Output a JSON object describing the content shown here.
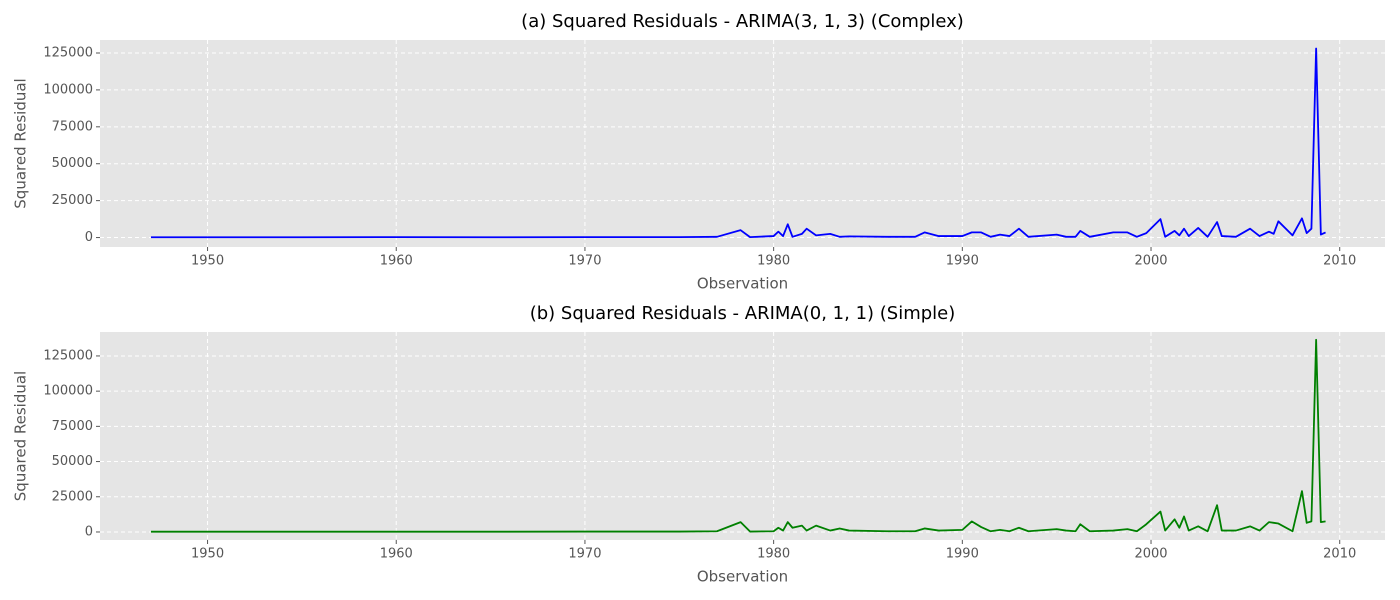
{
  "chart_data": [
    {
      "type": "line",
      "title": "(a) Squared Residuals - ARIMA(3, 1, 3) (Complex)",
      "xlabel": "Observation",
      "ylabel": "Squared Residual",
      "grid": true,
      "xlim": [
        1944.3,
        2012.4
      ],
      "ylim": [
        -6400,
        133800
      ],
      "xticks": [
        1950,
        1960,
        1970,
        1980,
        1990,
        2000,
        2010
      ],
      "yticks": [
        0,
        25000,
        50000,
        75000,
        100000,
        125000
      ],
      "x": [
        1947,
        1950,
        1955,
        1960,
        1965,
        1970,
        1975,
        1977,
        1978.25,
        1978.75,
        1980,
        1980.25,
        1980.5,
        1980.75,
        1981,
        1981.5,
        1981.75,
        1982.25,
        1983,
        1983.5,
        1984,
        1986,
        1987.5,
        1988,
        1988.75,
        1990,
        1990.5,
        1991,
        1991.5,
        1992,
        1992.5,
        1993,
        1993.5,
        1995,
        1995.5,
        1996,
        1996.25,
        1996.75,
        1998,
        1998.75,
        1999.25,
        1999.75,
        2000.5,
        2000.75,
        2001.25,
        2001.5,
        2001.75,
        2002,
        2002.5,
        2003,
        2003.5,
        2003.75,
        2004.5,
        2005.25,
        2005.75,
        2006.25,
        2006.5,
        2006.75,
        2007.5,
        2008,
        2008.25,
        2008.5,
        2008.75,
        2009,
        2009.25
      ],
      "series": [
        {
          "color": "#0000ff",
          "values": [
            200,
            200,
            200,
            300,
            200,
            300,
            300,
            500,
            5000,
            300,
            1000,
            4000,
            1000,
            9000,
            500,
            2500,
            6000,
            1500,
            2500,
            500,
            800,
            500,
            500,
            3500,
            1000,
            1000,
            3500,
            3500,
            500,
            2000,
            1000,
            6000,
            500,
            2000,
            500,
            500,
            4500,
            500,
            3500,
            3500,
            500,
            3000,
            12500,
            500,
            4500,
            1500,
            6000,
            1000,
            6500,
            500,
            10500,
            1000,
            500,
            6000,
            1000,
            4000,
            2500,
            11000,
            1500,
            13000,
            3000,
            6000,
            128000,
            2000,
            3500
          ]
        }
      ]
    },
    {
      "type": "line",
      "title": "(b) Squared Residuals - ARIMA(0, 1, 1) (Simple)",
      "xlabel": "Observation",
      "ylabel": "Squared Residual",
      "grid": true,
      "xlim": [
        1944.3,
        2012.4
      ],
      "ylim": [
        -5700,
        142000
      ],
      "xticks": [
        1950,
        1960,
        1970,
        1980,
        1990,
        2000,
        2010
      ],
      "yticks": [
        0,
        25000,
        50000,
        75000,
        100000,
        125000
      ],
      "x": [
        1947,
        1950,
        1955,
        1960,
        1965,
        1970,
        1975,
        1977,
        1978.25,
        1978.75,
        1980,
        1980.25,
        1980.5,
        1980.75,
        1981,
        1981.5,
        1981.75,
        1982.25,
        1983,
        1983.5,
        1984,
        1986,
        1987.5,
        1988,
        1988.75,
        1990,
        1990.5,
        1991,
        1991.5,
        1992,
        1992.5,
        1993,
        1993.5,
        1995,
        1995.5,
        1996,
        1996.25,
        1996.75,
        1998,
        1998.75,
        1999.25,
        1999.75,
        2000.5,
        2000.75,
        2001.25,
        2001.5,
        2001.75,
        2002,
        2002.5,
        2003,
        2003.5,
        2003.75,
        2004.5,
        2005.25,
        2005.75,
        2006.25,
        2006.5,
        2006.75,
        2007.5,
        2008,
        2008.25,
        2008.5,
        2008.75,
        2009,
        2009.25
      ],
      "series": [
        {
          "color": "#008000",
          "values": [
            200,
            200,
            200,
            200,
            200,
            300,
            300,
            500,
            7000,
            300,
            500,
            3000,
            1000,
            7000,
            3000,
            4500,
            1000,
            4500,
            1000,
            2500,
            1000,
            500,
            500,
            2500,
            1000,
            1500,
            7500,
            3500,
            500,
            1500,
            500,
            3000,
            500,
            2000,
            1000,
            500,
            5500,
            500,
            1000,
            2000,
            500,
            5500,
            14500,
            1000,
            9000,
            3000,
            11000,
            1000,
            4000,
            500,
            19000,
            1000,
            1000,
            4000,
            1000,
            7000,
            6500,
            6000,
            500,
            29000,
            6500,
            7500,
            136500,
            7000,
            7500
          ]
        }
      ]
    }
  ]
}
